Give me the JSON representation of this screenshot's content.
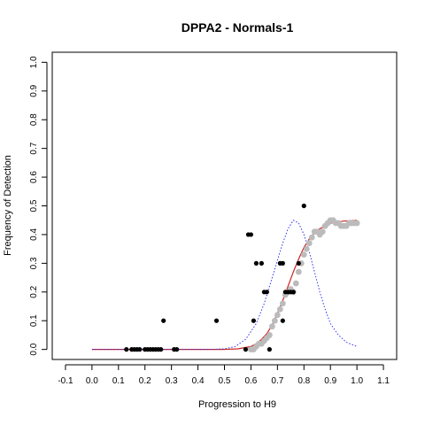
{
  "chart_data": {
    "type": "scatter",
    "title": "DPPA2 - Normals-1",
    "xlabel": "Progression to H9",
    "ylabel": "Frequency of Detection",
    "xlim": [
      -0.15,
      1.15
    ],
    "ylim": [
      -0.035,
      1.035
    ],
    "x_ticks": [
      "-0.1",
      "0.0",
      "0.1",
      "0.2",
      "0.3",
      "0.4",
      "0.5",
      "0.6",
      "0.7",
      "0.8",
      "0.9",
      "1.0",
      "1.1"
    ],
    "y_ticks": [
      "0.0",
      "0.1",
      "0.2",
      "0.3",
      "0.4",
      "0.5",
      "0.6",
      "0.7",
      "0.8",
      "0.9",
      "1.0"
    ],
    "series": [
      {
        "kind": "observed-points",
        "color": "#000000",
        "x": [
          0.13,
          0.15,
          0.16,
          0.17,
          0.18,
          0.2,
          0.21,
          0.22,
          0.23,
          0.24,
          0.25,
          0.26,
          0.27,
          0.31,
          0.32,
          0.47,
          0.58,
          0.59,
          0.6,
          0.61,
          0.62,
          0.64,
          0.65,
          0.66,
          0.67,
          0.71,
          0.72,
          0.72,
          0.73,
          0.74,
          0.75,
          0.76,
          0.78,
          0.8
        ],
        "y": [
          0.0,
          0.0,
          0.0,
          0.0,
          0.0,
          0.0,
          0.0,
          0.0,
          0.0,
          0.0,
          0.0,
          0.0,
          0.1,
          0.0,
          0.0,
          0.1,
          0.0,
          0.4,
          0.4,
          0.1,
          0.3,
          0.3,
          0.2,
          0.2,
          0.0,
          0.3,
          0.3,
          0.1,
          0.2,
          0.2,
          0.2,
          0.2,
          0.3,
          0.5
        ]
      },
      {
        "kind": "smoothed-points",
        "color": "#bbbbbb",
        "x": [
          0.6,
          0.61,
          0.62,
          0.63,
          0.64,
          0.65,
          0.66,
          0.67,
          0.68,
          0.69,
          0.7,
          0.71,
          0.72,
          0.73,
          0.74,
          0.75,
          0.76,
          0.77,
          0.78,
          0.79,
          0.8,
          0.81,
          0.82,
          0.83,
          0.84,
          0.85,
          0.86,
          0.87,
          0.88,
          0.89,
          0.9,
          0.91,
          0.92,
          0.93,
          0.94,
          0.95,
          0.96,
          0.97,
          0.98,
          0.99,
          1.0
        ],
        "y": [
          0.0,
          0.0,
          0.01,
          0.02,
          0.02,
          0.03,
          0.04,
          0.05,
          0.08,
          0.1,
          0.12,
          0.14,
          0.16,
          0.19,
          0.2,
          0.21,
          0.2,
          0.23,
          0.27,
          0.3,
          0.33,
          0.35,
          0.37,
          0.39,
          0.41,
          0.41,
          0.4,
          0.41,
          0.43,
          0.44,
          0.45,
          0.45,
          0.44,
          0.44,
          0.43,
          0.43,
          0.43,
          0.44,
          0.44,
          0.44,
          0.44
        ]
      },
      {
        "kind": "fitted-curve",
        "color": "#cc2222",
        "x": [
          0.0,
          0.1,
          0.2,
          0.3,
          0.4,
          0.5,
          0.55,
          0.6,
          0.62,
          0.64,
          0.66,
          0.68,
          0.7,
          0.72,
          0.74,
          0.76,
          0.78,
          0.8,
          0.82,
          0.84,
          0.86,
          0.88,
          0.9,
          0.95,
          1.0
        ],
        "y": [
          0.0,
          0.0,
          0.0,
          0.0,
          0.0,
          0.0,
          0.002,
          0.01,
          0.02,
          0.035,
          0.055,
          0.085,
          0.125,
          0.17,
          0.22,
          0.27,
          0.315,
          0.355,
          0.385,
          0.405,
          0.42,
          0.43,
          0.44,
          0.447,
          0.45
        ]
      },
      {
        "kind": "density-curve",
        "color": "#3333ee",
        "x": [
          0.0,
          0.1,
          0.2,
          0.3,
          0.4,
          0.45,
          0.5,
          0.54,
          0.58,
          0.62,
          0.65,
          0.68,
          0.7,
          0.72,
          0.74,
          0.76,
          0.78,
          0.8,
          0.82,
          0.84,
          0.86,
          0.88,
          0.9,
          0.93,
          0.96,
          1.0
        ],
        "y": [
          0.0,
          0.0,
          0.0,
          0.0,
          0.0,
          0.0,
          0.002,
          0.01,
          0.035,
          0.09,
          0.16,
          0.25,
          0.31,
          0.37,
          0.42,
          0.45,
          0.44,
          0.4,
          0.34,
          0.27,
          0.2,
          0.14,
          0.09,
          0.05,
          0.025,
          0.01
        ]
      }
    ]
  }
}
